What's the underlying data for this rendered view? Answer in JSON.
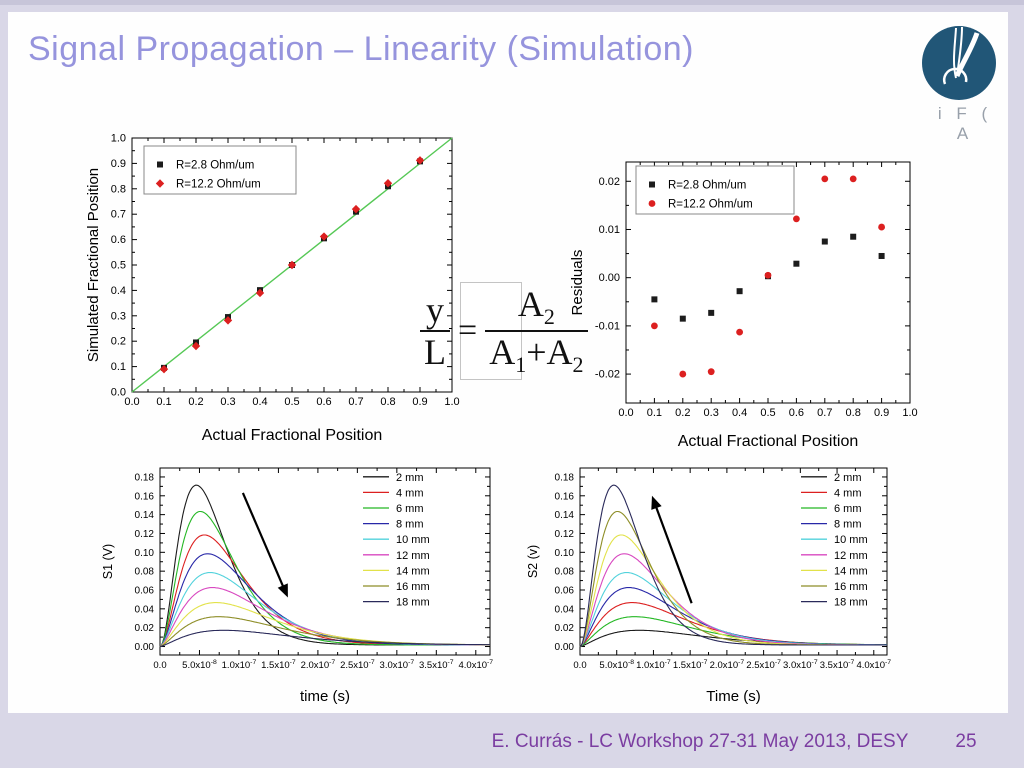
{
  "slide": {
    "title": "Signal Propagation – Linearity (Simulation)",
    "logo_text": "i F ( A",
    "footer": {
      "credit": "E. Currás -  LC Workshop 27-31 May 2013, DESY",
      "page": "25"
    },
    "colors": {
      "title": "#9694dd",
      "footer_text": "#7b3da1",
      "slide_border": "#d9d7e7",
      "logo_blue": "#215677"
    }
  },
  "formula": {
    "lhs_num": "y",
    "lhs_den": "L",
    "equals": "=",
    "rhs_num_base": "A",
    "rhs_num_sub": "2",
    "rhs_den_a_base": "A",
    "rhs_den_a_sub": "1",
    "rhs_plus": "+",
    "rhs_den_b_base": "A",
    "rhs_den_b_sub": "2"
  },
  "chart_data": [
    {
      "name": "linearity",
      "type": "scatter",
      "xlabel": "Actual Fractional Position",
      "ylabel": "Simulated Fractional Position",
      "xlim": [
        0,
        1
      ],
      "ylim": [
        0,
        1
      ],
      "grid": false,
      "legend_position": "top-left",
      "xticks": [
        {
          "v": 0,
          "label": "0.0"
        },
        {
          "v": 0.1,
          "label": "0.1"
        },
        {
          "v": 0.2,
          "label": "0.2"
        },
        {
          "v": 0.3,
          "label": "0.3"
        },
        {
          "v": 0.4,
          "label": "0.4"
        },
        {
          "v": 0.5,
          "label": "0.5"
        },
        {
          "v": 0.6,
          "label": "0.6"
        },
        {
          "v": 0.7,
          "label": "0.7"
        },
        {
          "v": 0.8,
          "label": "0.8"
        },
        {
          "v": 0.9,
          "label": "0.9"
        },
        {
          "v": 1,
          "label": "1.0"
        }
      ],
      "yticks": [
        {
          "v": 0,
          "label": "0.0"
        },
        {
          "v": 0.1,
          "label": "0.1"
        },
        {
          "v": 0.2,
          "label": "0.2"
        },
        {
          "v": 0.3,
          "label": "0.3"
        },
        {
          "v": 0.4,
          "label": "0.4"
        },
        {
          "v": 0.5,
          "label": "0.5"
        },
        {
          "v": 0.6,
          "label": "0.6"
        },
        {
          "v": 0.7,
          "label": "0.7"
        },
        {
          "v": 0.8,
          "label": "0.8"
        },
        {
          "v": 0.9,
          "label": "0.9"
        },
        {
          "v": 1,
          "label": "1.0"
        }
      ],
      "reference_line": {
        "from": [
          0,
          0
        ],
        "to": [
          1,
          1
        ],
        "color": "#55c855"
      },
      "series": [
        {
          "name": "R=2.8 Ohm/um",
          "marker": "square",
          "color": "#1c1c1c",
          "points": [
            [
              0.1,
              0.095
            ],
            [
              0.2,
              0.195
            ],
            [
              0.3,
              0.295
            ],
            [
              0.4,
              0.401
            ],
            [
              0.5,
              0.5
            ],
            [
              0.6,
              0.605
            ],
            [
              0.7,
              0.71
            ],
            [
              0.8,
              0.81
            ],
            [
              0.9,
              0.908
            ]
          ]
        },
        {
          "name": "R=12.2 Ohm/um",
          "marker": "diamond",
          "color": "#dc2020",
          "points": [
            [
              0.1,
              0.09
            ],
            [
              0.2,
              0.181
            ],
            [
              0.3,
              0.282
            ],
            [
              0.4,
              0.39
            ],
            [
              0.5,
              0.5
            ],
            [
              0.6,
              0.612
            ],
            [
              0.7,
              0.72
            ],
            [
              0.8,
              0.822
            ],
            [
              0.9,
              0.912
            ]
          ]
        }
      ]
    },
    {
      "name": "residuals",
      "type": "scatter",
      "xlabel": "Actual Fractional Position",
      "ylabel": "Residuals",
      "xlim": [
        0,
        1
      ],
      "ylim": [
        -0.026,
        0.024
      ],
      "grid": false,
      "legend_position": "top-left",
      "xticks": [
        {
          "v": 0,
          "label": "0.0"
        },
        {
          "v": 0.1,
          "label": "0.1"
        },
        {
          "v": 0.2,
          "label": "0.2"
        },
        {
          "v": 0.3,
          "label": "0.3"
        },
        {
          "v": 0.4,
          "label": "0.4"
        },
        {
          "v": 0.5,
          "label": "0.5"
        },
        {
          "v": 0.6,
          "label": "0.6"
        },
        {
          "v": 0.7,
          "label": "0.7"
        },
        {
          "v": 0.8,
          "label": "0.8"
        },
        {
          "v": 0.9,
          "label": "0.9"
        },
        {
          "v": 1,
          "label": "1.0"
        }
      ],
      "yticks": [
        {
          "v": -0.02,
          "label": "-0.02"
        },
        {
          "v": -0.01,
          "label": "-0.01"
        },
        {
          "v": 0,
          "label": "0.00"
        },
        {
          "v": 0.01,
          "label": "0.01"
        },
        {
          "v": 0.02,
          "label": "0.02"
        }
      ],
      "series": [
        {
          "name": "R=2.8 Ohm/um",
          "marker": "square",
          "color": "#1c1c1c",
          "points": [
            [
              0.1,
              -0.0045
            ],
            [
              0.2,
              -0.0085
            ],
            [
              0.3,
              -0.0073
            ],
            [
              0.4,
              -0.0028
            ],
            [
              0.5,
              0.0003
            ],
            [
              0.6,
              0.0029
            ],
            [
              0.7,
              0.0075
            ],
            [
              0.8,
              0.0085
            ],
            [
              0.9,
              0.0045
            ]
          ]
        },
        {
          "name": "R=12.2 Ohm/um",
          "marker": "circle",
          "color": "#dc2020",
          "points": [
            [
              0.1,
              -0.01
            ],
            [
              0.2,
              -0.02
            ],
            [
              0.3,
              -0.0195
            ],
            [
              0.4,
              -0.0113
            ],
            [
              0.5,
              0.0005
            ],
            [
              0.6,
              0.0122
            ],
            [
              0.7,
              0.0205
            ],
            [
              0.8,
              0.0205
            ],
            [
              0.9,
              0.0105
            ]
          ]
        }
      ]
    },
    {
      "name": "s1-pulses",
      "type": "line",
      "xlabel": "time (s)",
      "ylabel": "S1 (V)",
      "xlim": [
        0,
        4.18e-07
      ],
      "ylim": [
        -0.009,
        0.1895
      ],
      "grid": false,
      "legend_position": "top-right",
      "arrow": {
        "from": [
          1.05e-07,
          0.163
        ],
        "to": [
          1.62e-07,
          0.052
        ],
        "direction": "down-right"
      },
      "xticks": [
        {
          "v": 0,
          "label": "0.0"
        },
        {
          "v": 5e-08,
          "label": "5.0x10",
          "exp": "-8"
        },
        {
          "v": 1e-07,
          "label": "1.0x10",
          "exp": "-7"
        },
        {
          "v": 1.5e-07,
          "label": "1.5x10",
          "exp": "-7"
        },
        {
          "v": 2e-07,
          "label": "2.0x10",
          "exp": "-7"
        },
        {
          "v": 2.5e-07,
          "label": "2.5x10",
          "exp": "-7"
        },
        {
          "v": 3e-07,
          "label": "3.0x10",
          "exp": "-7"
        },
        {
          "v": 3.5e-07,
          "label": "3.5x10",
          "exp": "-7"
        },
        {
          "v": 4e-07,
          "label": "4.0x10",
          "exp": "-7"
        }
      ],
      "yticks": [
        {
          "v": 0,
          "label": "0.00"
        },
        {
          "v": 0.02,
          "label": "0.02"
        },
        {
          "v": 0.04,
          "label": "0.04"
        },
        {
          "v": 0.06,
          "label": "0.06"
        },
        {
          "v": 0.08,
          "label": "0.08"
        },
        {
          "v": 0.1,
          "label": "0.10"
        },
        {
          "v": 0.12,
          "label": "0.12"
        },
        {
          "v": 0.14,
          "label": "0.14"
        },
        {
          "v": 0.16,
          "label": "0.16"
        },
        {
          "v": 0.18,
          "label": "0.18"
        }
      ],
      "series": [
        {
          "label": "2 mm",
          "color": "#1c1c1c",
          "peak_v": 0.171,
          "peak_t": 4.6e-08
        },
        {
          "label": "4 mm",
          "color": "#dc2020",
          "peak_v": 0.118,
          "peak_t": 5.6e-08
        },
        {
          "label": "6 mm",
          "color": "#25b825",
          "peak_v": 0.143,
          "peak_t": 5.1e-08
        },
        {
          "label": "8 mm",
          "color": "#2828a8",
          "peak_v": 0.098,
          "peak_t": 6e-08
        },
        {
          "label": "10 mm",
          "color": "#52d2dc",
          "peak_v": 0.078,
          "peak_t": 6.3e-08
        },
        {
          "label": "12 mm",
          "color": "#d848c0",
          "peak_v": 0.062,
          "peak_t": 6.6e-08
        },
        {
          "label": "14 mm",
          "color": "#e2e24a",
          "peak_v": 0.046,
          "peak_t": 7e-08
        },
        {
          "label": "16 mm",
          "color": "#8e8e28",
          "peak_v": 0.031,
          "peak_t": 7.3e-08
        },
        {
          "label": "18 mm",
          "color": "#2a2a5a",
          "peak_v": 0.0165,
          "peak_t": 7.7e-08
        }
      ]
    },
    {
      "name": "s2-pulses",
      "type": "line",
      "xlabel": "Time (s)",
      "ylabel": "S2 (v)",
      "xlim": [
        0,
        4.18e-07
      ],
      "ylim": [
        -0.009,
        0.1895
      ],
      "grid": false,
      "legend_position": "top-right",
      "arrow": {
        "from": [
          1.52e-07,
          0.046
        ],
        "to": [
          9.8e-08,
          0.16
        ],
        "direction": "up-left"
      },
      "xticks": [
        {
          "v": 0,
          "label": "0.0"
        },
        {
          "v": 5e-08,
          "label": "5.0x10",
          "exp": "-8"
        },
        {
          "v": 1e-07,
          "label": "1.0x10",
          "exp": "-7"
        },
        {
          "v": 1.5e-07,
          "label": "1.5x10",
          "exp": "-7"
        },
        {
          "v": 2e-07,
          "label": "2.0x10",
          "exp": "-7"
        },
        {
          "v": 2.5e-07,
          "label": "2.5x10",
          "exp": "-7"
        },
        {
          "v": 3e-07,
          "label": "3.0x10",
          "exp": "-7"
        },
        {
          "v": 3.5e-07,
          "label": "3.5x10",
          "exp": "-7"
        },
        {
          "v": 4e-07,
          "label": "4.0x10",
          "exp": "-7"
        }
      ],
      "yticks": [
        {
          "v": 0,
          "label": "0.00"
        },
        {
          "v": 0.02,
          "label": "0.02"
        },
        {
          "v": 0.04,
          "label": "0.04"
        },
        {
          "v": 0.06,
          "label": "0.06"
        },
        {
          "v": 0.08,
          "label": "0.08"
        },
        {
          "v": 0.1,
          "label": "0.10"
        },
        {
          "v": 0.12,
          "label": "0.12"
        },
        {
          "v": 0.14,
          "label": "0.14"
        },
        {
          "v": 0.16,
          "label": "0.16"
        },
        {
          "v": 0.18,
          "label": "0.18"
        }
      ],
      "series": [
        {
          "label": "2 mm",
          "color": "#1c1c1c",
          "peak_v": 0.0165,
          "peak_t": 7.7e-08
        },
        {
          "label": "4 mm",
          "color": "#dc2020",
          "peak_v": 0.046,
          "peak_t": 7e-08
        },
        {
          "label": "6 mm",
          "color": "#25b825",
          "peak_v": 0.031,
          "peak_t": 7.3e-08
        },
        {
          "label": "8 mm",
          "color": "#2828a8",
          "peak_v": 0.062,
          "peak_t": 6.6e-08
        },
        {
          "label": "10 mm",
          "color": "#52d2dc",
          "peak_v": 0.078,
          "peak_t": 6.3e-08
        },
        {
          "label": "12 mm",
          "color": "#d848c0",
          "peak_v": 0.098,
          "peak_t": 6e-08
        },
        {
          "label": "14 mm",
          "color": "#e2e24a",
          "peak_v": 0.118,
          "peak_t": 5.6e-08
        },
        {
          "label": "16 mm",
          "color": "#8e8e28",
          "peak_v": 0.143,
          "peak_t": 5.1e-08
        },
        {
          "label": "18 mm",
          "color": "#2a2a5a",
          "peak_v": 0.171,
          "peak_t": 4.6e-08
        }
      ]
    }
  ]
}
